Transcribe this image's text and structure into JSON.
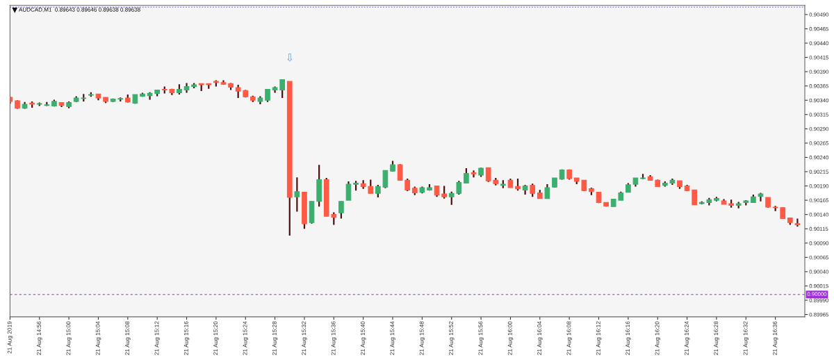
{
  "chart_data": {
    "type": "candlestick",
    "title": "AUDCAD,M1  0.89643 0.89646 0.89638 0.89638",
    "x": [
      "2019-08-21T14:52",
      "2019-08-21T14:53",
      "2019-08-21T14:54",
      "2019-08-21T14:55",
      "2019-08-21T14:56",
      "2019-08-21T14:57",
      "2019-08-21T14:58",
      "2019-08-21T14:59",
      "2019-08-21T15:00",
      "2019-08-21T15:01",
      "2019-08-21T15:02",
      "2019-08-21T15:03",
      "2019-08-21T15:04",
      "2019-08-21T15:05",
      "2019-08-21T15:06",
      "2019-08-21T15:07",
      "2019-08-21T15:08",
      "2019-08-21T15:09",
      "2019-08-21T15:10",
      "2019-08-21T15:11",
      "2019-08-21T15:12",
      "2019-08-21T15:13",
      "2019-08-21T15:14",
      "2019-08-21T15:15",
      "2019-08-21T15:16",
      "2019-08-21T15:17",
      "2019-08-21T15:18",
      "2019-08-21T15:19",
      "2019-08-21T15:20",
      "2019-08-21T15:21",
      "2019-08-21T15:22",
      "2019-08-21T15:23",
      "2019-08-21T15:24",
      "2019-08-21T15:25",
      "2019-08-21T15:26",
      "2019-08-21T15:27",
      "2019-08-21T15:28",
      "2019-08-21T15:29",
      "2019-08-21T15:30",
      "2019-08-21T15:31",
      "2019-08-21T15:32",
      "2019-08-21T15:33",
      "2019-08-21T15:34",
      "2019-08-21T15:35",
      "2019-08-21T15:36",
      "2019-08-21T15:37",
      "2019-08-21T15:38",
      "2019-08-21T15:39",
      "2019-08-21T15:40",
      "2019-08-21T15:41",
      "2019-08-21T15:42",
      "2019-08-21T15:43",
      "2019-08-21T15:44",
      "2019-08-21T15:45",
      "2019-08-21T15:46",
      "2019-08-21T15:47",
      "2019-08-21T15:48",
      "2019-08-21T15:49",
      "2019-08-21T15:50",
      "2019-08-21T15:51",
      "2019-08-21T15:52",
      "2019-08-21T15:53",
      "2019-08-21T15:54",
      "2019-08-21T15:55",
      "2019-08-21T15:56",
      "2019-08-21T15:57",
      "2019-08-21T15:58",
      "2019-08-21T15:59",
      "2019-08-21T16:00",
      "2019-08-21T16:01",
      "2019-08-21T16:02",
      "2019-08-21T16:03",
      "2019-08-21T16:04",
      "2019-08-21T16:05",
      "2019-08-21T16:06",
      "2019-08-21T16:07",
      "2019-08-21T16:08",
      "2019-08-21T16:09",
      "2019-08-21T16:10",
      "2019-08-21T16:11",
      "2019-08-21T16:12",
      "2019-08-21T16:13",
      "2019-08-21T16:14",
      "2019-08-21T16:15",
      "2019-08-21T16:16",
      "2019-08-21T16:17",
      "2019-08-21T16:18",
      "2019-08-21T16:19",
      "2019-08-21T16:20",
      "2019-08-21T16:21",
      "2019-08-21T16:22",
      "2019-08-21T16:23",
      "2019-08-21T16:24",
      "2019-08-21T16:25",
      "2019-08-21T16:26",
      "2019-08-21T16:27",
      "2019-08-21T16:28",
      "2019-08-21T16:29",
      "2019-08-21T16:30",
      "2019-08-21T16:31",
      "2019-08-21T16:32",
      "2019-08-21T16:33",
      "2019-08-21T16:34",
      "2019-08-21T16:35",
      "2019-08-21T16:36",
      "2019-08-21T16:37",
      "2019-08-21T16:38",
      "2019-08-21T16:39"
    ],
    "ohlc": [
      [
        0.90345,
        0.90346,
        0.90334,
        0.90338
      ],
      [
        0.90339,
        0.9034,
        0.90325,
        0.90326
      ],
      [
        0.90326,
        0.90337,
        0.90325,
        0.90333
      ],
      [
        0.90335,
        0.90338,
        0.90327,
        0.90333
      ],
      [
        0.90333,
        0.90336,
        0.9033,
        0.90334
      ],
      [
        0.90331,
        0.90337,
        0.9033,
        0.90332
      ],
      [
        0.9033,
        0.90341,
        0.90329,
        0.90338
      ],
      [
        0.90336,
        0.90336,
        0.90328,
        0.90331
      ],
      [
        0.90329,
        0.90338,
        0.90326,
        0.90336
      ],
      [
        0.90338,
        0.90347,
        0.90337,
        0.90344
      ],
      [
        0.90343,
        0.90351,
        0.90338,
        0.90344
      ],
      [
        0.90349,
        0.90354,
        0.90346,
        0.9035
      ],
      [
        0.90351,
        0.90351,
        0.9034,
        0.90344
      ],
      [
        0.90345,
        0.90345,
        0.90335,
        0.90338
      ],
      [
        0.90338,
        0.90343,
        0.90337,
        0.90342
      ],
      [
        0.90342,
        0.90345,
        0.90338,
        0.90343
      ],
      [
        0.90344,
        0.9035,
        0.90336,
        0.90337
      ],
      [
        0.90335,
        0.9035,
        0.90334,
        0.9035
      ],
      [
        0.90347,
        0.90353,
        0.90346,
        0.90351
      ],
      [
        0.90348,
        0.90354,
        0.90341,
        0.90352
      ],
      [
        0.90352,
        0.90358,
        0.90347,
        0.90358
      ],
      [
        0.90359,
        0.90364,
        0.90352,
        0.90358
      ],
      [
        0.90359,
        0.9036,
        0.90349,
        0.90353
      ],
      [
        0.90353,
        0.90368,
        0.9035,
        0.90359
      ],
      [
        0.90358,
        0.9037,
        0.90353,
        0.90364
      ],
      [
        0.90364,
        0.9037,
        0.90361,
        0.90367
      ],
      [
        0.90369,
        0.90369,
        0.90356,
        0.90367
      ],
      [
        0.90369,
        0.90369,
        0.9036,
        0.90367
      ],
      [
        0.90373,
        0.90375,
        0.90364,
        0.90371
      ],
      [
        0.90371,
        0.90375,
        0.90367,
        0.90368
      ],
      [
        0.90369,
        0.9037,
        0.90358,
        0.90363
      ],
      [
        0.90362,
        0.90367,
        0.90344,
        0.90356
      ],
      [
        0.90357,
        0.90358,
        0.90345,
        0.90346
      ],
      [
        0.90346,
        0.90348,
        0.90337,
        0.9034
      ],
      [
        0.90338,
        0.90347,
        0.90333,
        0.90344
      ],
      [
        0.9034,
        0.90359,
        0.90337,
        0.90359
      ],
      [
        0.90358,
        0.90364,
        0.90353,
        0.90362
      ],
      [
        0.90358,
        0.90376,
        0.90344,
        0.90376
      ],
      [
        0.90373,
        0.90373,
        0.90103,
        0.9017
      ],
      [
        0.90171,
        0.90205,
        0.90145,
        0.9018
      ],
      [
        0.90179,
        0.90179,
        0.90115,
        0.90124
      ],
      [
        0.90126,
        0.90163,
        0.90124,
        0.90163
      ],
      [
        0.90163,
        0.90227,
        0.90154,
        0.90201
      ],
      [
        0.90201,
        0.90204,
        0.90137,
        0.90137
      ],
      [
        0.9014,
        0.90144,
        0.90122,
        0.90135
      ],
      [
        0.90143,
        0.90163,
        0.90133,
        0.90163
      ],
      [
        0.90165,
        0.90198,
        0.90165,
        0.90193
      ],
      [
        0.90193,
        0.90199,
        0.90182,
        0.90195
      ],
      [
        0.90194,
        0.902,
        0.90185,
        0.90189
      ],
      [
        0.90189,
        0.90201,
        0.90177,
        0.90177
      ],
      [
        0.90177,
        0.90192,
        0.9017,
        0.90189
      ],
      [
        0.90188,
        0.90217,
        0.90186,
        0.90217
      ],
      [
        0.90216,
        0.90234,
        0.90215,
        0.90227
      ],
      [
        0.90227,
        0.90228,
        0.902,
        0.902
      ],
      [
        0.902,
        0.90203,
        0.90181,
        0.90183
      ],
      [
        0.90186,
        0.90189,
        0.90174,
        0.90178
      ],
      [
        0.90179,
        0.90189,
        0.90177,
        0.90187
      ],
      [
        0.90183,
        0.90193,
        0.90182,
        0.90187
      ],
      [
        0.9019,
        0.9019,
        0.90171,
        0.90174
      ],
      [
        0.90176,
        0.9019,
        0.90168,
        0.90171
      ],
      [
        0.90171,
        0.9018,
        0.90157,
        0.90177
      ],
      [
        0.90177,
        0.90199,
        0.90175,
        0.90196
      ],
      [
        0.90195,
        0.90221,
        0.90195,
        0.90212
      ],
      [
        0.90213,
        0.90217,
        0.90205,
        0.90211
      ],
      [
        0.90209,
        0.90222,
        0.90206,
        0.90221
      ],
      [
        0.90222,
        0.90222,
        0.90197,
        0.90199
      ],
      [
        0.902,
        0.90204,
        0.90191,
        0.90194
      ],
      [
        0.90191,
        0.902,
        0.90186,
        0.90193
      ],
      [
        0.902,
        0.90203,
        0.90187,
        0.90187
      ],
      [
        0.90189,
        0.90203,
        0.90182,
        0.90185
      ],
      [
        0.90183,
        0.90192,
        0.90175,
        0.9019
      ],
      [
        0.90191,
        0.90194,
        0.90171,
        0.90177
      ],
      [
        0.90178,
        0.90183,
        0.90168,
        0.90168
      ],
      [
        0.90168,
        0.90193,
        0.90168,
        0.90187
      ],
      [
        0.90188,
        0.90204,
        0.90187,
        0.90204
      ],
      [
        0.90202,
        0.90219,
        0.90201,
        0.90218
      ],
      [
        0.90218,
        0.90219,
        0.90201,
        0.90203
      ],
      [
        0.90204,
        0.90204,
        0.90193,
        0.90198
      ],
      [
        0.902,
        0.902,
        0.90181,
        0.90182
      ],
      [
        0.90185,
        0.90187,
        0.90174,
        0.9018
      ],
      [
        0.90179,
        0.90179,
        0.9016,
        0.90161
      ],
      [
        0.90161,
        0.90161,
        0.90154,
        0.90155
      ],
      [
        0.90154,
        0.90167,
        0.90154,
        0.90167
      ],
      [
        0.90165,
        0.9018,
        0.90165,
        0.90178
      ],
      [
        0.90179,
        0.90195,
        0.90179,
        0.90192
      ],
      [
        0.90193,
        0.90204,
        0.90189,
        0.90204
      ],
      [
        0.90203,
        0.90211,
        0.90202,
        0.90204
      ],
      [
        0.90206,
        0.90209,
        0.902,
        0.902
      ],
      [
        0.902,
        0.90201,
        0.90189,
        0.90189
      ],
      [
        0.90191,
        0.90198,
        0.90189,
        0.90195
      ],
      [
        0.90195,
        0.90203,
        0.90192,
        0.902
      ],
      [
        0.90199,
        0.90199,
        0.90185,
        0.90189
      ],
      [
        0.9019,
        0.90192,
        0.90181,
        0.90182
      ],
      [
        0.90183,
        0.90183,
        0.90157,
        0.90157
      ],
      [
        0.90159,
        0.90163,
        0.90158,
        0.90161
      ],
      [
        0.90161,
        0.90169,
        0.90156,
        0.90166
      ],
      [
        0.90165,
        0.90171,
        0.90163,
        0.90168
      ],
      [
        0.90164,
        0.90167,
        0.90158,
        0.90158
      ],
      [
        0.90159,
        0.90166,
        0.90152,
        0.90156
      ],
      [
        0.90156,
        0.90162,
        0.90151,
        0.90159
      ],
      [
        0.90161,
        0.90165,
        0.90156,
        0.90164
      ],
      [
        0.90161,
        0.90175,
        0.90161,
        0.90171
      ],
      [
        0.90172,
        0.90178,
        0.90163,
        0.90176
      ],
      [
        0.9017,
        0.9017,
        0.90152,
        0.90153
      ],
      [
        0.90153,
        0.90155,
        0.90146,
        0.90152
      ],
      [
        0.90152,
        0.90152,
        0.90133,
        0.90133
      ],
      [
        0.90134,
        0.90134,
        0.90122,
        0.90126
      ],
      [
        0.90124,
        0.90133,
        0.90119,
        0.90122
      ]
    ],
    "colors": [
      "#ff5a45",
      "#ff5a45",
      "#3caf6f",
      "#ff5a45",
      "#3caf6f",
      "#3caf6f",
      "#3caf6f",
      "#ff5a45",
      "#3caf6f",
      "#3caf6f",
      "#3caf6f",
      "#3caf6f",
      "#ff5a45",
      "#ff5a45",
      "#3caf6f",
      "#3caf6f",
      "#ff5a45",
      "#3caf6f",
      "#3caf6f",
      "#3caf6f",
      "#3caf6f",
      "#ff5a45",
      "#ff5a45",
      "#3caf6f",
      "#3caf6f",
      "#3caf6f",
      "#ff5a45",
      "#ff5a45",
      "#ff5a45",
      "#ff5a45",
      "#ff5a45",
      "#ff5a45",
      "#ff5a45",
      "#ff5a45",
      "#3caf6f",
      "#3caf6f",
      "#3caf6f",
      "#3caf6f",
      "#ff5a45",
      "#3caf6f",
      "#ff5a45",
      "#3caf6f",
      "#3caf6f",
      "#ff5a45",
      "#ff5a45",
      "#3caf6f",
      "#3caf6f",
      "#3caf6f",
      "#ff5a45",
      "#ff5a45",
      "#3caf6f",
      "#3caf6f",
      "#3caf6f",
      "#ff5a45",
      "#ff5a45",
      "#ff5a45",
      "#3caf6f",
      "#3caf6f",
      "#ff5a45",
      "#ff5a45",
      "#3caf6f",
      "#3caf6f",
      "#3caf6f",
      "#ff5a45",
      "#3caf6f",
      "#ff5a45",
      "#ff5a45",
      "#3caf6f",
      "#ff5a45",
      "#ff5a45",
      "#3caf6f",
      "#ff5a45",
      "#ff5a45",
      "#3caf6f",
      "#3caf6f",
      "#3caf6f",
      "#ff5a45",
      "#ff5a45",
      "#ff5a45",
      "#ff5a45",
      "#ff5a45",
      "#ff5a45",
      "#3caf6f",
      "#3caf6f",
      "#3caf6f",
      "#3caf6f",
      "#3caf6f",
      "#ff5a45",
      "#ff5a45",
      "#3caf6f",
      "#3caf6f",
      "#ff5a45",
      "#ff5a45",
      "#ff5a45",
      "#3caf6f",
      "#3caf6f",
      "#3caf6f",
      "#ff5a45",
      "#ff5a45",
      "#3caf6f",
      "#3caf6f",
      "#3caf6f",
      "#3caf6f",
      "#ff5a45",
      "#ff5a45",
      "#ff5a45",
      "#ff5a45",
      "#ff5a45"
    ],
    "xlim": [
      "2019-08-21T14:52",
      "2019-08-21T16:40"
    ],
    "xticks": [
      {
        "value": "2019-08-21T14:52",
        "label": "21 Aug 2019"
      },
      {
        "value": "2019-08-21T14:56",
        "label": "21 Aug 14:56"
      },
      {
        "value": "2019-08-21T15:00",
        "label": "21 Aug 15:00"
      },
      {
        "value": "2019-08-21T15:04",
        "label": "21 Aug 15:04"
      },
      {
        "value": "2019-08-21T15:08",
        "label": "21 Aug 15:08"
      },
      {
        "value": "2019-08-21T15:12",
        "label": "21 Aug 15:12"
      },
      {
        "value": "2019-08-21T15:16",
        "label": "21 Aug 15:16"
      },
      {
        "value": "2019-08-21T15:20",
        "label": "21 Aug 15:20"
      },
      {
        "value": "2019-08-21T15:24",
        "label": "21 Aug 15:24"
      },
      {
        "value": "2019-08-21T15:28",
        "label": "21 Aug 15:28"
      },
      {
        "value": "2019-08-21T15:32",
        "label": "21 Aug 15:32"
      },
      {
        "value": "2019-08-21T15:36",
        "label": "21 Aug 15:36"
      },
      {
        "value": "2019-08-21T15:40",
        "label": "21 Aug 15:40"
      },
      {
        "value": "2019-08-21T15:44",
        "label": "21 Aug 15:44"
      },
      {
        "value": "2019-08-21T15:48",
        "label": "21 Aug 15:48"
      },
      {
        "value": "2019-08-21T15:52",
        "label": "21 Aug 15:52"
      },
      {
        "value": "2019-08-21T15:56",
        "label": "21 Aug 15:56"
      },
      {
        "value": "2019-08-21T16:00",
        "label": "21 Aug 16:00"
      },
      {
        "value": "2019-08-21T16:04",
        "label": "21 Aug 16:04"
      },
      {
        "value": "2019-08-21T16:08",
        "label": "21 Aug 16:08"
      },
      {
        "value": "2019-08-21T16:12",
        "label": "21 Aug 16:12"
      },
      {
        "value": "2019-08-21T16:16",
        "label": "21 Aug 16:16"
      },
      {
        "value": "2019-08-21T16:20",
        "label": "21 Aug 16:20"
      },
      {
        "value": "2019-08-21T16:24",
        "label": "21 Aug 16:24"
      },
      {
        "value": "2019-08-21T16:28",
        "label": "21 Aug 16:28"
      },
      {
        "value": "2019-08-21T16:32",
        "label": "21 Aug 16:32"
      },
      {
        "value": "2019-08-21T16:36",
        "label": "21 Aug 16:36"
      }
    ],
    "ylim": [
      0.89961,
      0.90506
    ],
    "yticks": [
      {
        "value": 0.89965,
        "label": "0.89965"
      },
      {
        "value": 0.8999,
        "label": "0.89990"
      },
      {
        "value": 0.90015,
        "label": "0.90015"
      },
      {
        "value": 0.9004,
        "label": "0.90040"
      },
      {
        "value": 0.90065,
        "label": "0.90065"
      },
      {
        "value": 0.9009,
        "label": "0.90090"
      },
      {
        "value": 0.90115,
        "label": "0.90115"
      },
      {
        "value": 0.9014,
        "label": "0.90140"
      },
      {
        "value": 0.90165,
        "label": "0.90165"
      },
      {
        "value": 0.9019,
        "label": "0.90190"
      },
      {
        "value": 0.90215,
        "label": "0.90215"
      },
      {
        "value": 0.9024,
        "label": "0.90240"
      },
      {
        "value": 0.90265,
        "label": "0.90265"
      },
      {
        "value": 0.9029,
        "label": "0.90290"
      },
      {
        "value": 0.90315,
        "label": "0.90315"
      },
      {
        "value": 0.9034,
        "label": "0.90340"
      },
      {
        "value": 0.90365,
        "label": "0.90365"
      },
      {
        "value": 0.9039,
        "label": "0.90390"
      },
      {
        "value": 0.90415,
        "label": "0.90415"
      },
      {
        "value": 0.9044,
        "label": "0.90440"
      },
      {
        "value": 0.90465,
        "label": "0.90465"
      },
      {
        "value": 0.9049,
        "label": "0.90490"
      }
    ],
    "ref_lines": [
      {
        "axis": "y",
        "value": 0.9,
        "label": "0.90000",
        "color": "#9b30d9",
        "line_style": "dashed"
      },
      {
        "axis": "y",
        "value": 0.90503,
        "color": "#6a5acd",
        "line_style": "dotted"
      }
    ],
    "annotations": [
      "⇩"
    ],
    "grid": false,
    "legend": false
  }
}
